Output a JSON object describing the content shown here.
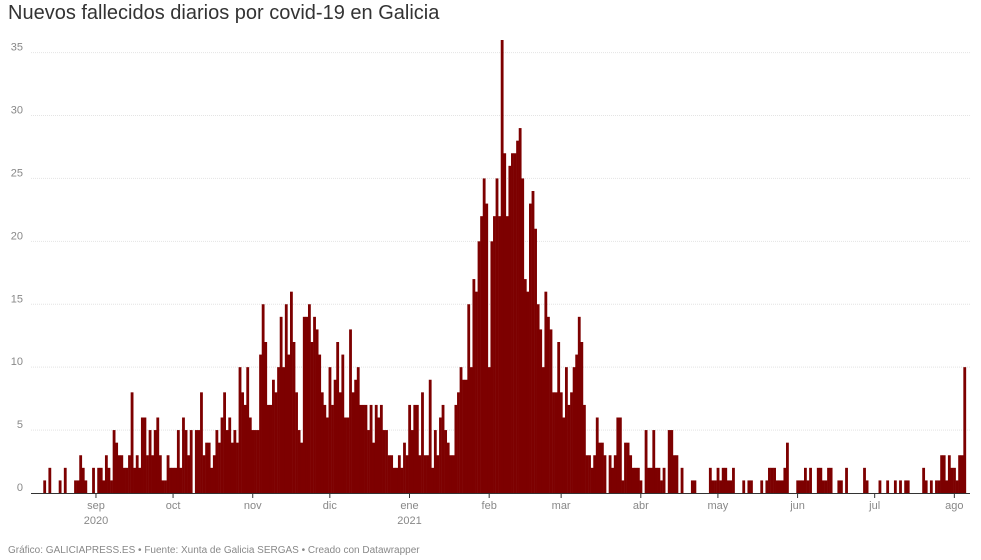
{
  "title": "Nuevos fallecidos diarios por covid-19 en Galicia",
  "footer": "Gráfico: GALICIAPRESS.ES • Fuente: Xunta de Galicia SERGAS • Creado con Datawrapper",
  "colors": {
    "bar": "#7d0000",
    "grid": "#e4e4e4",
    "text": "#888888"
  },
  "chart_data": {
    "type": "bar",
    "title": "Nuevos fallecidos diarios por covid-19 en Galicia",
    "xlabel": "",
    "ylabel": "",
    "ylim": [
      0,
      36
    ],
    "y_ticks": [
      "0",
      "5",
      "10",
      "15",
      "20",
      "25",
      "30",
      "35"
    ],
    "x_ticks": [
      {
        "label": "sep",
        "year": "2020",
        "day": 24
      },
      {
        "label": "oct",
        "year": "",
        "day": 54
      },
      {
        "label": "nov",
        "year": "",
        "day": 85
      },
      {
        "label": "dic",
        "year": "",
        "day": 115
      },
      {
        "label": "ene",
        "year": "2021",
        "day": 146
      },
      {
        "label": "feb",
        "year": "",
        "day": 177
      },
      {
        "label": "mar",
        "year": "",
        "day": 205
      },
      {
        "label": "abr",
        "year": "",
        "day": 236
      },
      {
        "label": "may",
        "year": "",
        "day": 266
      },
      {
        "label": "jun",
        "year": "",
        "day": 297
      },
      {
        "label": "jul",
        "year": "",
        "day": 327
      },
      {
        "label": "ago",
        "year": "",
        "day": 358
      }
    ],
    "start_date": "2020-08-08",
    "series": [
      {
        "name": "Nuevos fallecidos",
        "values": [
          0,
          0,
          0,
          0,
          1,
          0,
          2,
          0,
          0,
          0,
          1,
          0,
          2,
          0,
          0,
          0,
          1,
          1,
          3,
          2,
          1,
          0,
          0,
          2,
          0,
          2,
          2,
          1,
          3,
          2,
          1,
          5,
          4,
          3,
          3,
          2,
          2,
          3,
          8,
          2,
          3,
          2,
          6,
          6,
          3,
          5,
          3,
          5,
          6,
          3,
          1,
          1,
          3,
          2,
          2,
          2,
          5,
          2,
          6,
          5,
          3,
          5,
          0,
          5,
          5,
          8,
          3,
          4,
          4,
          2,
          3,
          5,
          4,
          6,
          8,
          5,
          6,
          4,
          5,
          4,
          10,
          8,
          7,
          10,
          6,
          5,
          5,
          5,
          11,
          15,
          12,
          7,
          7,
          9,
          8,
          10,
          14,
          10,
          15,
          11,
          16,
          12,
          8,
          5,
          4,
          14,
          14,
          15,
          12,
          14,
          13,
          11,
          8,
          7,
          6,
          10,
          7,
          9,
          12,
          8,
          11,
          6,
          6,
          13,
          8,
          9,
          10,
          7,
          7,
          7,
          5,
          7,
          4,
          7,
          6,
          7,
          5,
          5,
          3,
          3,
          2,
          2,
          3,
          2,
          4,
          3,
          7,
          5,
          7,
          7,
          3,
          8,
          3,
          3,
          9,
          2,
          5,
          3,
          6,
          7,
          5,
          4,
          3,
          3,
          7,
          8,
          10,
          9,
          9,
          15,
          10,
          17,
          16,
          20,
          22,
          25,
          23,
          10,
          20,
          22,
          25,
          22,
          36,
          27,
          22,
          26,
          27,
          27,
          28,
          29,
          25,
          17,
          16,
          23,
          24,
          21,
          15,
          13,
          10,
          16,
          14,
          13,
          8,
          8,
          12,
          8,
          6,
          10,
          7,
          8,
          10,
          11,
          14,
          12,
          7,
          3,
          3,
          2,
          3,
          6,
          4,
          4,
          3,
          0,
          3,
          2,
          3,
          6,
          6,
          1,
          4,
          4,
          3,
          2,
          2,
          2,
          1,
          0,
          5,
          2,
          2,
          5,
          2,
          2,
          1,
          2,
          0,
          5,
          5,
          3,
          3,
          0,
          2,
          0,
          0,
          0,
          1,
          1,
          0,
          0,
          0,
          0,
          0,
          2,
          1,
          1,
          2,
          1,
          2,
          2,
          1,
          1,
          2,
          0,
          0,
          0,
          1,
          0,
          1,
          1,
          0,
          0,
          0,
          1,
          0,
          1,
          2,
          2,
          2,
          1,
          1,
          1,
          2,
          4,
          0,
          0,
          0,
          1,
          1,
          1,
          2,
          1,
          2,
          0,
          0,
          2,
          2,
          1,
          1,
          2,
          2,
          0,
          0,
          1,
          1,
          0,
          2,
          0,
          0,
          0,
          0,
          0,
          0,
          2,
          1,
          0,
          0,
          0,
          0,
          1,
          0,
          0,
          1,
          0,
          0,
          1,
          0,
          1,
          0,
          1,
          1,
          0,
          0,
          0,
          0,
          0,
          2,
          1,
          0,
          1,
          0,
          1,
          1,
          3,
          3,
          1,
          3,
          2,
          2,
          1,
          3,
          3,
          10
        ]
      }
    ]
  }
}
